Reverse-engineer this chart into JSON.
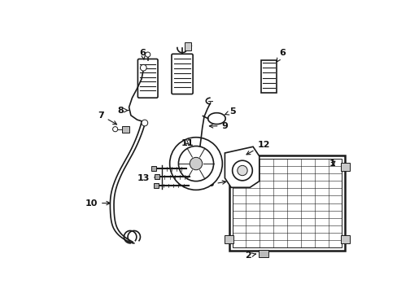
{
  "bg_color": "#ffffff",
  "line_color": "#1a1a1a",
  "label_color": "#111111",
  "fig_width": 4.89,
  "fig_height": 3.6,
  "dpi": 100
}
